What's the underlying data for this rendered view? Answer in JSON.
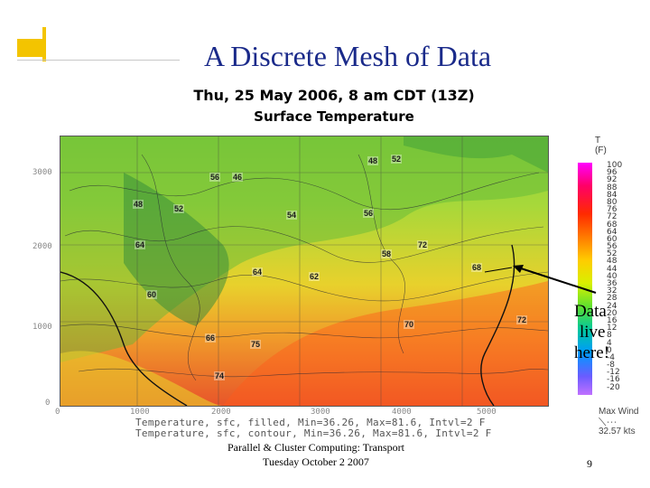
{
  "slide": {
    "title": "A Discrete Mesh of Data",
    "footer_line1": "Parallel & Cluster Computing: Transport",
    "footer_line2": "Tuesday October 2 2007",
    "page_number": "9"
  },
  "map": {
    "heading_line1": "Thu, 25 May 2006, 8 am CDT (13Z)",
    "heading_line2": "Surface Temperature",
    "y_ticks": [
      "3000",
      "2000",
      "1000",
      "0"
    ],
    "x_ticks": [
      "0",
      "1000",
      "2000",
      "3000",
      "4000",
      "5000"
    ],
    "footnote_line1": "Temperature, sfc, filled, Min=36.26, Max=81.6, Intvl=2 F",
    "footnote_line2": "Temperature, sfc, contour, Min=36.26, Max=81.6, Intvl=2 F",
    "markers": [
      "48",
      "52",
      "46",
      "56",
      "48",
      "52",
      "54",
      "56",
      "60",
      "58",
      "62",
      "64",
      "70",
      "68",
      "72",
      "74",
      "66",
      "75",
      "64",
      "72"
    ]
  },
  "legend": {
    "title": "T",
    "unit": "(F)",
    "values": [
      "100",
      "96",
      "92",
      "88",
      "84",
      "80",
      "76",
      "72",
      "68",
      "64",
      "60",
      "56",
      "52",
      "48",
      "44",
      "40",
      "36",
      "32",
      "28",
      "24",
      "20",
      "16",
      "12",
      "8",
      "4",
      "0",
      "-4",
      "-8",
      "-12",
      "-16",
      "-20"
    ]
  },
  "annotation": {
    "line1": "Data",
    "line2": "live",
    "line3": "here!"
  },
  "wind": {
    "label": "Max Wind",
    "value": "32.57 kts"
  }
}
